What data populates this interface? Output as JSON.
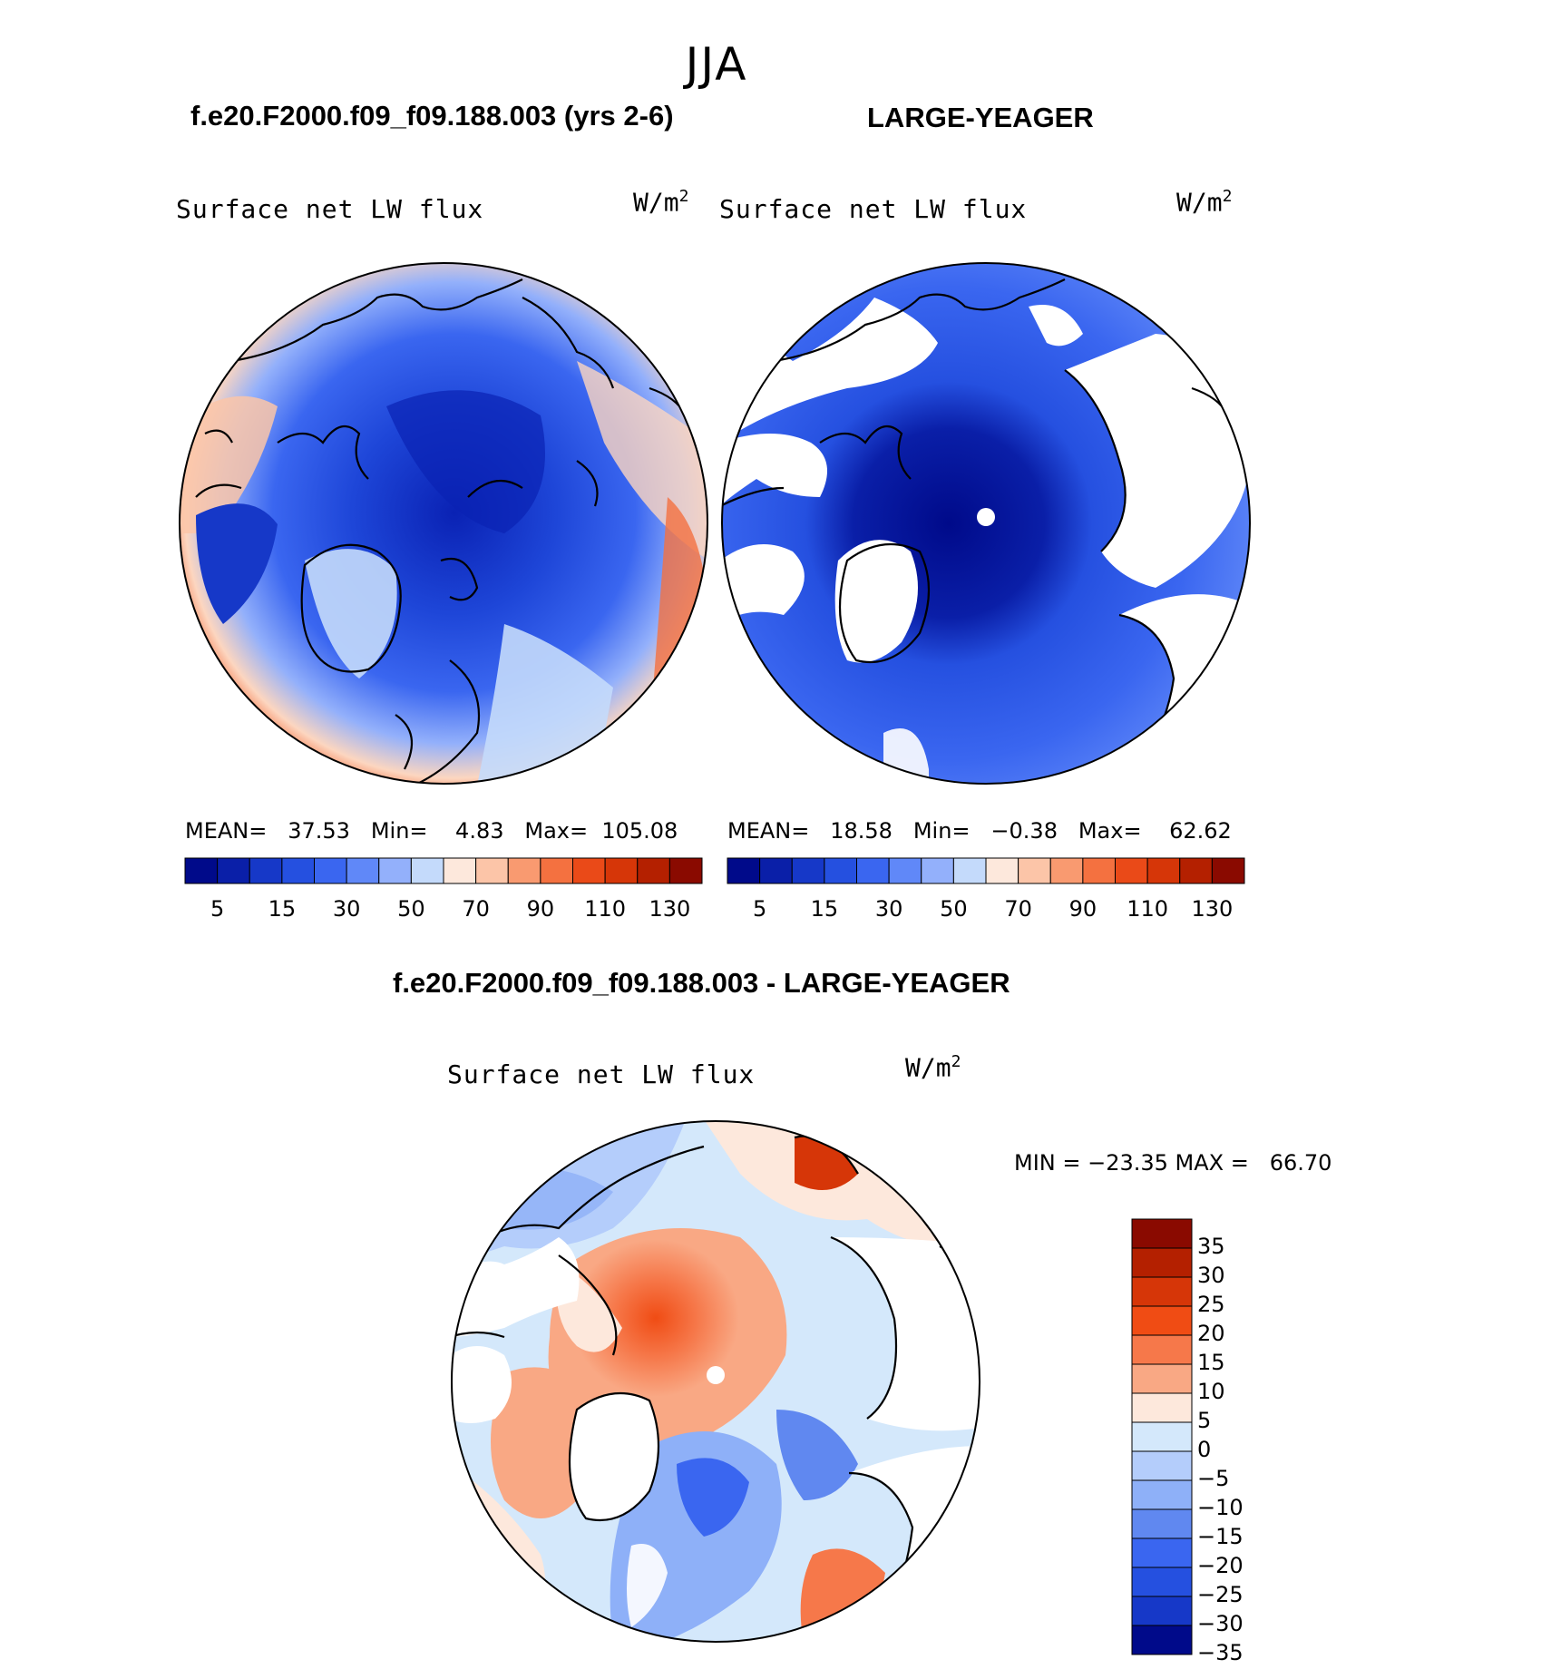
{
  "season": "JJA",
  "units": "W/m",
  "units_sup": "2",
  "panels": {
    "model": {
      "header": "f.e20.F2000.f09_f09.188.003 (yrs 2-6)",
      "title": "Surface net LW flux",
      "stats": "MEAN=   37.53   Min=    4.83   Max=  105.08"
    },
    "obs": {
      "header": "LARGE-YEAGER",
      "title": "Surface net LW flux",
      "stats": "MEAN=   18.58   Min=   −0.38   Max=    62.62"
    },
    "diff": {
      "header": "f.e20.F2000.f09_f09.188.003 - LARGE-YEAGER",
      "title": "Surface net LW flux",
      "stats": "MIN = −23.35 MAX =   66.70"
    }
  },
  "colorbar_abs": {
    "tick_labels": [
      "5",
      "15",
      "30",
      "50",
      "70",
      "90",
      "110",
      "130"
    ],
    "colors": [
      "#000a8a",
      "#0a1fa8",
      "#1638c8",
      "#2550e0",
      "#3a66f0",
      "#6088f8",
      "#93b0fb",
      "#c4dafb",
      "#fde8dc",
      "#fcc5a8",
      "#f99a70",
      "#f47140",
      "#ea4a18",
      "#d63608",
      "#b42000",
      "#8a0a00"
    ]
  },
  "colorbar_diff": {
    "tick_labels": [
      "35",
      "30",
      "25",
      "20",
      "15",
      "10",
      "5",
      "0",
      "−5",
      "−10",
      "−15",
      "−20",
      "−25",
      "−30",
      "−35"
    ],
    "colors": [
      "#8a0a00",
      "#b42000",
      "#d63608",
      "#f04c14",
      "#f6784a",
      "#f9a884",
      "#fde8dc",
      "#d4e8fb",
      "#b4cdfb",
      "#8eb0f8",
      "#6088f0",
      "#3a66f0",
      "#2550e0",
      "#1638c8",
      "#000a8a"
    ]
  }
}
